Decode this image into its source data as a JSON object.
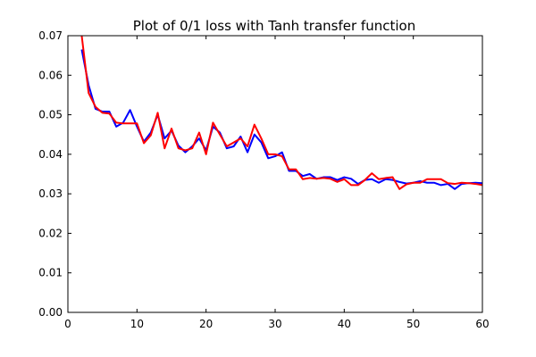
{
  "chart_data": {
    "type": "line",
    "title": "Plot of 0/1 loss with Tanh transfer function",
    "xlabel": "",
    "ylabel": "",
    "xlim": [
      0,
      60
    ],
    "ylim": [
      0,
      0.07
    ],
    "x_ticks": [
      "0",
      "10",
      "20",
      "30",
      "40",
      "50",
      "60"
    ],
    "y_ticks": [
      "0.00",
      "0.01",
      "0.02",
      "0.03",
      "0.04",
      "0.05",
      "0.06",
      "0.07"
    ],
    "grid": false,
    "legend": "none",
    "x": [
      2,
      3,
      4,
      5,
      6,
      7,
      8,
      9,
      10,
      11,
      12,
      13,
      14,
      15,
      16,
      17,
      18,
      19,
      20,
      21,
      22,
      23,
      24,
      25,
      26,
      27,
      28,
      29,
      30,
      31,
      32,
      33,
      34,
      35,
      36,
      37,
      38,
      39,
      40,
      41,
      42,
      43,
      44,
      45,
      46,
      47,
      48,
      49,
      50,
      51,
      52,
      53,
      54,
      55,
      56,
      57,
      58,
      59,
      60
    ],
    "series": [
      {
        "color": "#0000ff",
        "values": [
          0.0665,
          0.0575,
          0.0515,
          0.0508,
          0.0508,
          0.047,
          0.048,
          0.0512,
          0.047,
          0.0432,
          0.0455,
          0.05,
          0.044,
          0.046,
          0.0422,
          0.0405,
          0.042,
          0.044,
          0.041,
          0.047,
          0.0455,
          0.0415,
          0.042,
          0.0445,
          0.0405,
          0.045,
          0.043,
          0.039,
          0.0395,
          0.0405,
          0.0358,
          0.0358,
          0.0345,
          0.035,
          0.0338,
          0.0342,
          0.0342,
          0.0335,
          0.0342,
          0.0338,
          0.0325,
          0.0335,
          0.0337,
          0.0328,
          0.0337,
          0.0335,
          0.033,
          0.0326,
          0.0328,
          0.0332,
          0.0328,
          0.0328,
          0.0322,
          0.0325,
          0.0312,
          0.0325,
          0.0327,
          0.0328,
          0.0327
        ]
      },
      {
        "color": "#ff0000",
        "values": [
          0.07,
          0.0555,
          0.052,
          0.0505,
          0.0503,
          0.048,
          0.0478,
          0.0478,
          0.0478,
          0.0428,
          0.0448,
          0.0505,
          0.0415,
          0.0465,
          0.0415,
          0.041,
          0.0415,
          0.0455,
          0.04,
          0.048,
          0.045,
          0.042,
          0.043,
          0.044,
          0.042,
          0.0475,
          0.044,
          0.04,
          0.04,
          0.0395,
          0.0362,
          0.0362,
          0.0337,
          0.034,
          0.0338,
          0.034,
          0.0338,
          0.033,
          0.0337,
          0.0322,
          0.0322,
          0.0335,
          0.0352,
          0.0337,
          0.034,
          0.0342,
          0.0312,
          0.0324,
          0.0328,
          0.0328,
          0.0337,
          0.0337,
          0.0337,
          0.0327,
          0.0325,
          0.0328,
          0.0327,
          0.0325,
          0.0322
        ]
      }
    ]
  }
}
